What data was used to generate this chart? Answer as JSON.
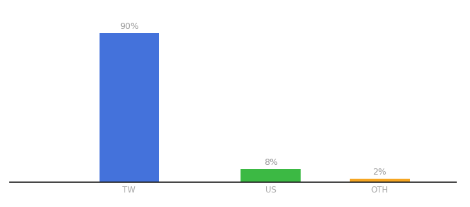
{
  "categories": [
    "TW",
    "US",
    "OTH"
  ],
  "values": [
    90,
    8,
    2
  ],
  "bar_colors": [
    "#4472db",
    "#3cb944",
    "#f5a623"
  ],
  "labels": [
    "90%",
    "8%",
    "2%"
  ],
  "ylim": [
    0,
    100
  ],
  "label_fontsize": 9,
  "tick_fontsize": 8.5,
  "background_color": "#ffffff",
  "bar_width": 0.55,
  "xlim": [
    -0.6,
    3.5
  ]
}
